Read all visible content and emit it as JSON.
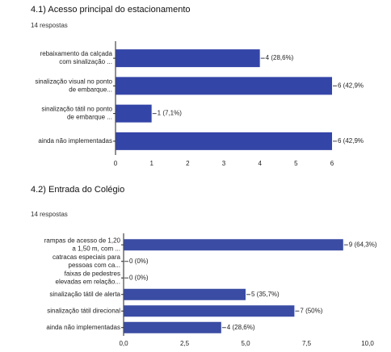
{
  "chart_data": [
    {
      "type": "bar",
      "orientation": "horizontal",
      "title": "4.1) Acesso principal do estacionamento",
      "subtitle": "14 respostas",
      "categories": [
        [
          "rebaixamento da calçada",
          "com sinalização ..."
        ],
        [
          "sinalização visual no ponto",
          "de embarque..."
        ],
        [
          "sinalização tátil no ponto",
          "de embarque ..."
        ],
        [
          "ainda não implementadas"
        ]
      ],
      "values": [
        4,
        6,
        1,
        6
      ],
      "value_labels": [
        "4 (28,6%)",
        "6 (42,9%",
        "1 (7,1%)",
        "6 (42,9%"
      ],
      "color": "#3445a8",
      "xlim": [
        0,
        6
      ],
      "xticks": [
        0,
        1,
        2,
        3,
        4,
        5,
        6
      ],
      "grid": false
    },
    {
      "type": "bar",
      "orientation": "horizontal",
      "title": "4.2) Entrada do Colégio",
      "subtitle": "14 respostas",
      "categories": [
        [
          "rampas de acesso de 1,20",
          "a 1,50 m, com ..."
        ],
        [
          "catracas especiais para",
          "pessoas com ca..."
        ],
        [
          "faixas de pedestres",
          "elevadas em relação..."
        ],
        [
          "sinalização tátil de alerta"
        ],
        [
          "sinalização tátil direcional"
        ],
        [
          "ainda não implementadas"
        ]
      ],
      "values": [
        9,
        0,
        0,
        5,
        7,
        4
      ],
      "value_labels": [
        "9 (64,3%)",
        "0 (0%)",
        "0 (0%)",
        "5 (35,7%)",
        "7 (50%)",
        "4 (28,6%)"
      ],
      "color": "#3a4ca3",
      "xlim": [
        0,
        10
      ],
      "xticks": [
        {
          "value": 0,
          "label": "0,0"
        },
        {
          "value": 2.5,
          "label": "2,5"
        },
        {
          "value": 5,
          "label": "5,0"
        },
        {
          "value": 7.5,
          "label": "7,5"
        },
        {
          "value": 10,
          "label": "10,0"
        }
      ],
      "grid": false
    }
  ]
}
